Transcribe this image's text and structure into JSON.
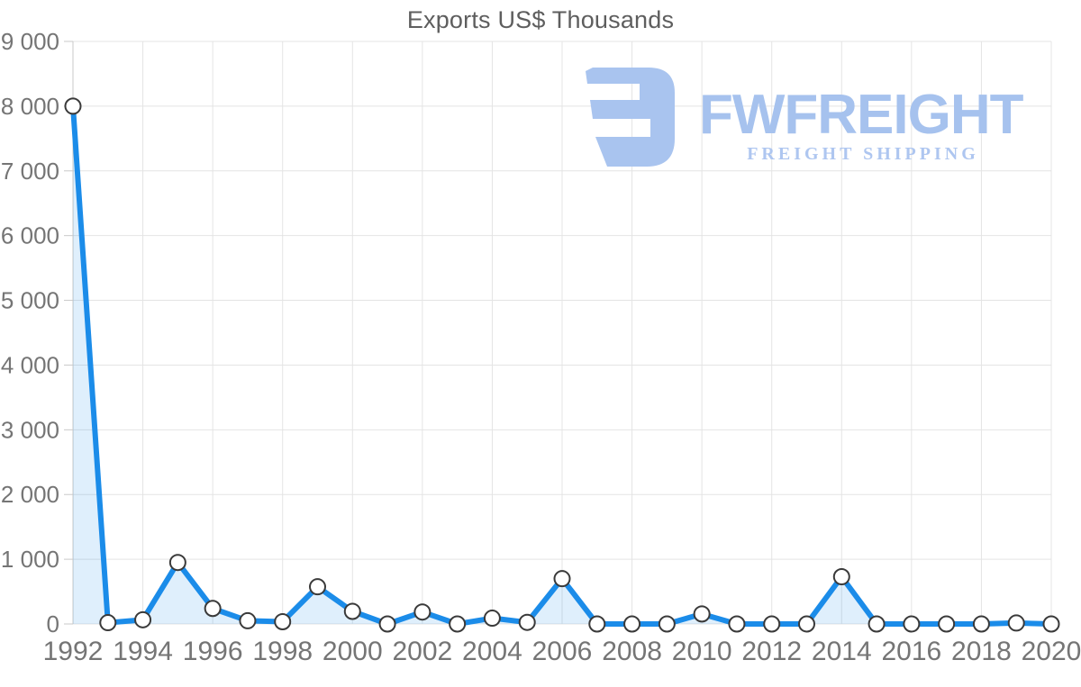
{
  "chart": {
    "title": "Exports US$ Thousands",
    "watermark": {
      "brand": "FWFREIGHT",
      "tagline": "FREIGHT SHIPPING",
      "logo_color": "#a9c4ef"
    },
    "colors": {
      "line": "#1b8ce9",
      "area_fill": "#1b8ce9",
      "area_opacity": 0.14,
      "marker_fill": "#ffffff",
      "marker_stroke": "#3a3a3a",
      "grid": "#e4e4e4",
      "axis": "#c9c9c9",
      "tick": "#c9c9c9",
      "label": "#757575",
      "title": "#5e5e5e"
    }
  },
  "chart_data": {
    "type": "area",
    "title": "Exports US$ Thousands",
    "xlabel": "",
    "ylabel": "",
    "x": [
      1992,
      1993,
      1994,
      1995,
      1996,
      1997,
      1998,
      1999,
      2000,
      2001,
      2002,
      2003,
      2004,
      2005,
      2006,
      2007,
      2008,
      2009,
      2010,
      2011,
      2012,
      2013,
      2014,
      2015,
      2016,
      2017,
      2018,
      2019,
      2020
    ],
    "series": [
      {
        "name": "Exports US$ Thousands",
        "values": [
          8000,
          20,
          65,
          950,
          240,
          50,
          35,
          575,
          195,
          0,
          185,
          0,
          90,
          25,
          700,
          0,
          0,
          0,
          155,
          0,
          0,
          0,
          730,
          0,
          0,
          0,
          0,
          15,
          0
        ]
      }
    ],
    "ylim": [
      0,
      9000
    ],
    "ytick_step": 1000,
    "xtick_step": 2,
    "y_tick_labels": [
      "0",
      "1 000",
      "2 000",
      "3 000",
      "4 000",
      "5 000",
      "6 000",
      "7 000",
      "8 000",
      "9 000"
    ],
    "x_tick_labels": [
      "1992",
      "1994",
      "1996",
      "1998",
      "2000",
      "2002",
      "2004",
      "2006",
      "2008",
      "2010",
      "2012",
      "2014",
      "2016",
      "2018",
      "2020"
    ],
    "grid": true,
    "legend": false,
    "marker": "circle"
  }
}
